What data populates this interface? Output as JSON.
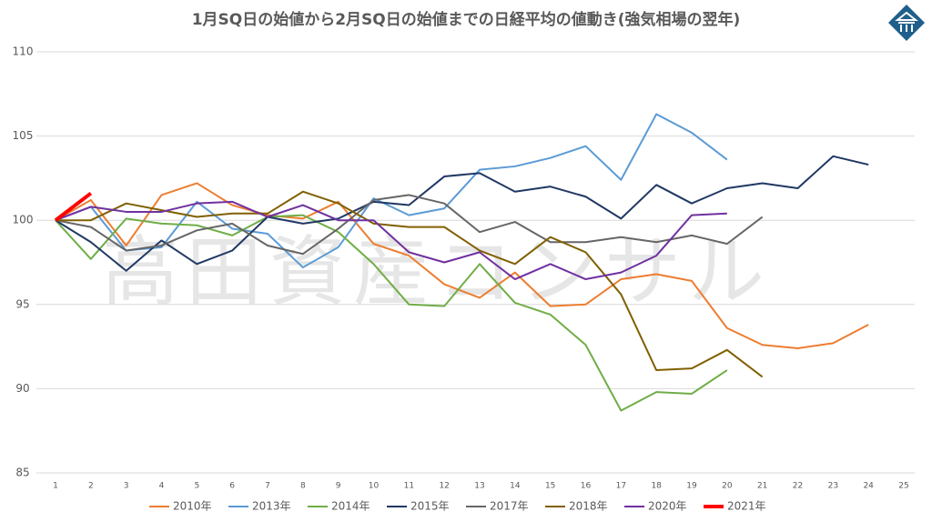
{
  "chart_data": {
    "type": "line",
    "title": "1月SQ日の始値から2月SQ日の始値までの日経平均の値動き(強気相場の翌年)",
    "watermark": "高田資産コンサル",
    "categories": [
      1,
      2,
      3,
      4,
      5,
      6,
      7,
      8,
      9,
      10,
      11,
      12,
      13,
      14,
      15,
      16,
      17,
      18,
      19,
      20,
      21,
      22,
      23,
      24,
      25
    ],
    "ylim": [
      85,
      110
    ],
    "yticks": [
      85,
      90,
      95,
      100,
      105,
      110
    ],
    "grid": true,
    "legend": "bottom",
    "series": [
      {
        "name": "2010年",
        "color": "#ed7d31",
        "values": [
          100,
          101.2,
          98.5,
          101.5,
          102.2,
          100.9,
          100.3,
          100.1,
          101.1,
          98.6,
          97.9,
          96.2,
          95.4,
          96.9,
          94.9,
          95.0,
          96.5,
          96.8,
          96.4,
          93.6,
          92.6,
          92.4,
          92.7,
          93.8,
          null
        ]
      },
      {
        "name": "2013年",
        "color": "#5b9bd5",
        "values": [
          100,
          100.8,
          98.2,
          98.4,
          101.1,
          99.5,
          99.2,
          97.2,
          98.4,
          101.3,
          100.3,
          100.7,
          103.0,
          103.2,
          103.7,
          104.4,
          102.4,
          106.3,
          105.2,
          103.6,
          null,
          null,
          null,
          null,
          null
        ]
      },
      {
        "name": "2014年",
        "color": "#70ad47",
        "values": [
          100,
          97.7,
          100.1,
          99.8,
          99.7,
          99.1,
          100.2,
          100.3,
          99.3,
          97.4,
          95.0,
          94.9,
          97.4,
          95.1,
          94.4,
          92.6,
          88.7,
          89.8,
          89.7,
          91.1,
          null,
          null,
          null,
          null,
          null
        ]
      },
      {
        "name": "2015年",
        "color": "#203864",
        "values": [
          100,
          98.7,
          97.0,
          98.8,
          97.4,
          98.2,
          100.2,
          99.8,
          100.1,
          101.1,
          100.9,
          102.6,
          102.8,
          101.7,
          102.0,
          101.4,
          100.1,
          102.1,
          101.0,
          101.9,
          102.2,
          101.9,
          103.8,
          103.3,
          null
        ]
      },
      {
        "name": "2017年",
        "color": "#666666",
        "values": [
          100,
          99.6,
          98.2,
          98.5,
          99.4,
          99.8,
          98.5,
          98.0,
          99.5,
          101.2,
          101.5,
          101.0,
          99.3,
          99.9,
          98.7,
          98.7,
          99.0,
          98.7,
          99.1,
          98.6,
          100.2,
          null,
          null,
          null,
          null
        ]
      },
      {
        "name": "2018年",
        "color": "#806000",
        "values": [
          100,
          100.0,
          101.0,
          100.6,
          100.2,
          100.4,
          100.4,
          101.7,
          101.0,
          99.8,
          99.6,
          99.6,
          98.2,
          97.4,
          99.0,
          98.1,
          95.6,
          91.1,
          91.2,
          92.3,
          90.7,
          null,
          null,
          null,
          null
        ]
      },
      {
        "name": "2020年",
        "color": "#7030a0",
        "values": [
          100,
          100.8,
          100.5,
          100.5,
          101.0,
          101.1,
          100.2,
          100.9,
          100.0,
          100.0,
          98.1,
          97.5,
          98.1,
          96.5,
          97.4,
          96.5,
          96.9,
          97.9,
          100.3,
          100.4,
          null,
          null,
          null,
          null,
          null
        ]
      },
      {
        "name": "2021年",
        "color": "#ff0000",
        "values": [
          100,
          101.6,
          null,
          null,
          null,
          null,
          null,
          null,
          null,
          null,
          null,
          null,
          null,
          null,
          null,
          null,
          null,
          null,
          null,
          null,
          null,
          null,
          null,
          null,
          null
        ]
      }
    ]
  }
}
